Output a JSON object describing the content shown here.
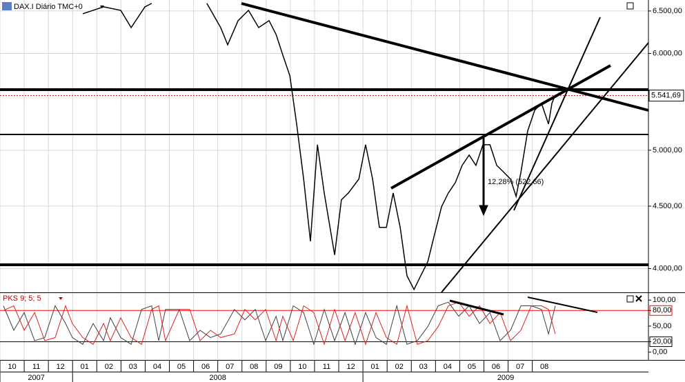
{
  "chart_data": [
    {
      "type": "candle-line",
      "title": "DAX.I Diário TMC+0",
      "log": true,
      "grid": true,
      "color": "#000000",
      "xlim": [
        0,
        26.8
      ],
      "ylim": [
        3825,
        6636
      ],
      "yticks": [
        {
          "value": 4000,
          "label": "4.000,00"
        },
        {
          "value": 4500,
          "label": "4.500,00"
        },
        {
          "value": 5000,
          "label": "5.000,00"
        },
        {
          "value": 6000,
          "label": "6.000,00"
        },
        {
          "value": 6500,
          "label": "6.500,00"
        }
      ],
      "xticks": [
        {
          "value": 0,
          "label": "10"
        },
        {
          "value": 1,
          "label": "11"
        },
        {
          "value": 2,
          "label": "12"
        },
        {
          "value": 3,
          "label": "01"
        },
        {
          "value": 4,
          "label": "02"
        },
        {
          "value": 5,
          "label": "03"
        },
        {
          "value": 6,
          "label": "04"
        },
        {
          "value": 7,
          "label": "05"
        },
        {
          "value": 8,
          "label": "06"
        },
        {
          "value": 9,
          "label": "07"
        },
        {
          "value": 10,
          "label": "08"
        },
        {
          "value": 11,
          "label": "09"
        },
        {
          "value": 12,
          "label": "10"
        },
        {
          "value": 13,
          "label": "11"
        },
        {
          "value": 14,
          "label": "12"
        },
        {
          "value": 15,
          "label": "01"
        },
        {
          "value": 16,
          "label": "02"
        },
        {
          "value": 17,
          "label": "03"
        },
        {
          "value": 18,
          "label": "04"
        },
        {
          "value": 19,
          "label": "05"
        },
        {
          "value": 20,
          "label": "06"
        },
        {
          "value": 21,
          "label": "07"
        },
        {
          "value": 22,
          "label": "08"
        }
      ],
      "years": [
        {
          "value": 0,
          "label": "2007"
        },
        {
          "value": 3,
          "label": "2008"
        },
        {
          "value": 15,
          "label": "2009"
        }
      ],
      "last_price": {
        "value": 5541.69,
        "label": "5.541,69"
      },
      "annotation": "12,28% (522,66)",
      "x": [
        3.42,
        4.28,
        4.99,
        5.42,
        5.99,
        6.27,
        7.5,
        8.55,
        9.12,
        9.41,
        9.84,
        10.27,
        10.69,
        11.12,
        11.41,
        11.69,
        11.98,
        12.26,
        12.55,
        12.83,
        13.12,
        13.4,
        13.83,
        14.11,
        14.4,
        14.83,
        15.11,
        15.4,
        15.68,
        15.97,
        16.25,
        16.54,
        16.82,
        17.11,
        17.39,
        17.68,
        17.96,
        18.25,
        18.53,
        18.82,
        19.1,
        19.39,
        19.67,
        19.96,
        20.25,
        20.53,
        20.82,
        21.1,
        21.33,
        21.53,
        21.81,
        22.1,
        22.38,
        22.67,
        22.81,
        22.95
      ],
      "values": [
        6466,
        6551,
        6508,
        6300,
        6551,
        6594,
        null,
        6594,
        6300,
        6099,
        6383,
        6508,
        6300,
        6383,
        6219,
        5981,
        5753,
        5253,
        4735,
        4212,
        5052,
        4613,
        4105,
        4554,
        4613,
        4735,
        5052,
        4735,
        4323,
        4323,
        4613,
        4323,
        3947,
        3846,
        3947,
        4052,
        4267,
        4495,
        4613,
        4704,
        4859,
        4955,
        4859,
        5052,
        5052,
        4859,
        4797,
        4735,
        4583,
        4797,
        5186,
        5391,
        5462,
        5253,
        5462,
        5548
      ]
    },
    {
      "type": "stochastic",
      "title": "PKS 9; 5; 5",
      "xlim": [
        0,
        26.8
      ],
      "ylim": [
        -15,
        113.5
      ],
      "yticks": [
        {
          "value": 100,
          "label": "100,00"
        },
        {
          "value": 80,
          "label": "80,00"
        },
        {
          "value": 50,
          "label": "50,00"
        },
        {
          "value": 20,
          "label": "20,00"
        },
        {
          "value": 0,
          "label": "0,00"
        }
      ],
      "levels": [
        {
          "value": 80,
          "color": "#ff0000"
        },
        {
          "value": 20,
          "color": "#000000"
        }
      ],
      "x": [
        0.14,
        0.57,
        1.0,
        1.43,
        1.85,
        2.28,
        2.71,
        2.99,
        3.42,
        3.85,
        4.28,
        4.56,
        4.99,
        5.42,
        5.85,
        6.27,
        6.56,
        6.84,
        7.41,
        7.84,
        8.27,
        8.7,
        9.12,
        9.69,
        10.12,
        10.55,
        10.98,
        11.41,
        11.69,
        12.12,
        12.55,
        12.97,
        13.4,
        13.83,
        14.26,
        14.68,
        15.11,
        15.54,
        15.97,
        16.4,
        16.82,
        17.25,
        17.68,
        18.11,
        18.53,
        18.96,
        19.39,
        19.82,
        20.25,
        20.67,
        21.1,
        21.53,
        21.96,
        22.38,
        22.67,
        22.95
      ],
      "series": [
        {
          "color": "#404040",
          "values": [
            89,
            42,
            76,
            22,
            28,
            89,
            55,
            28,
            15,
            55,
            22,
            66,
            28,
            15,
            82,
            89,
            22,
            82,
            82,
            22,
            42,
            28,
            35,
            82,
            62,
            82,
            22,
            69,
            22,
            89,
            76,
            15,
            82,
            22,
            76,
            15,
            76,
            28,
            15,
            89,
            15,
            22,
            49,
            89,
            96,
            69,
            89,
            55,
            76,
            22,
            42,
            89,
            89,
            82,
            35,
            89
          ]
        },
        {
          "color": "#e02020",
          "values": [
            80,
            89,
            42,
            76,
            22,
            28,
            89,
            55,
            28,
            15,
            55,
            22,
            66,
            28,
            15,
            82,
            89,
            22,
            82,
            82,
            22,
            42,
            28,
            35,
            82,
            62,
            82,
            22,
            69,
            22,
            89,
            76,
            15,
            82,
            22,
            76,
            15,
            76,
            28,
            15,
            89,
            15,
            22,
            49,
            89,
            96,
            69,
            89,
            55,
            76,
            22,
            42,
            89,
            89,
            82,
            35
          ]
        }
      ]
    }
  ]
}
